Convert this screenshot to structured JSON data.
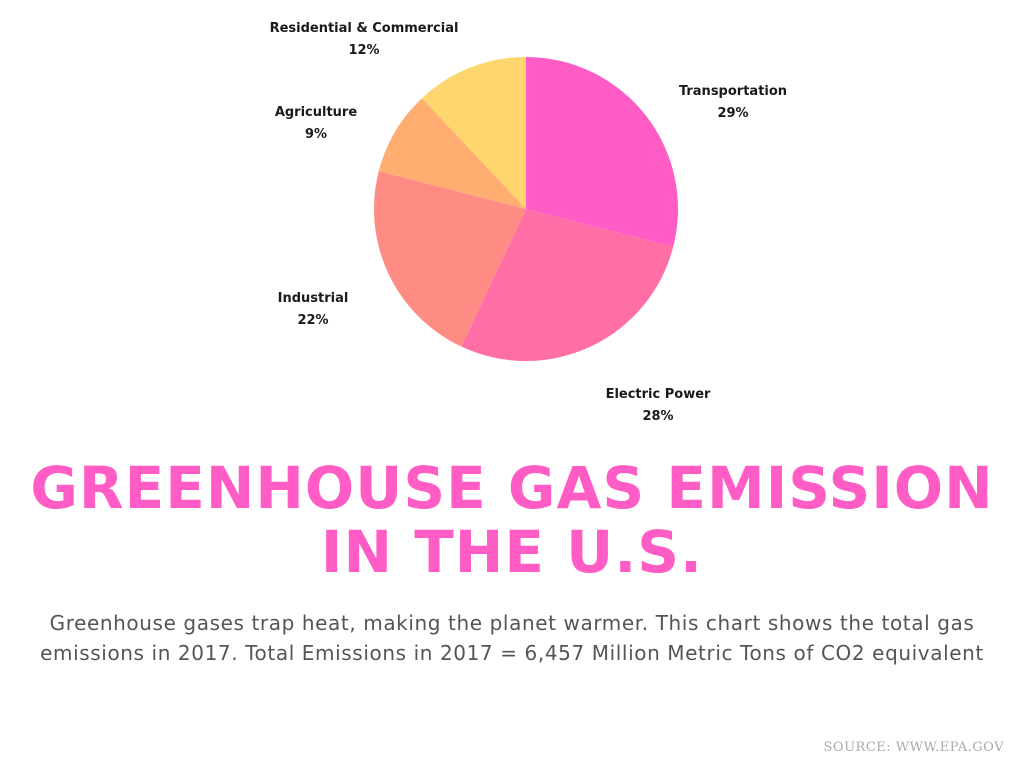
{
  "chart_data": {
    "type": "pie",
    "slices": [
      {
        "label": "Transportation",
        "value": 29,
        "value_label": "29%",
        "color": "#ff5cc6"
      },
      {
        "label": "Electric Power",
        "value": 28,
        "value_label": "28%",
        "color": "#ff6fa6"
      },
      {
        "label": "Industrial",
        "value": 22,
        "value_label": "22%",
        "color": "#ff8c84"
      },
      {
        "label": "Agriculture",
        "value": 9,
        "value_label": "9%",
        "color": "#ffad70"
      },
      {
        "label": "Residential & Commercial",
        "value": 12,
        "value_label": "12%",
        "color": "#ffd56d"
      }
    ]
  },
  "title": {
    "line1": "GREENHOUSE GAS EMISSION",
    "line2": "IN THE U.S."
  },
  "description": "Greenhouse gases trap heat, making the planet warmer. This chart shows the total gas emissions in 2017. Total Emissions in 2017 = 6,457 Million Metric Tons of CO2 equivalent",
  "source": "SOURCE: WWW.EPA.GOV"
}
